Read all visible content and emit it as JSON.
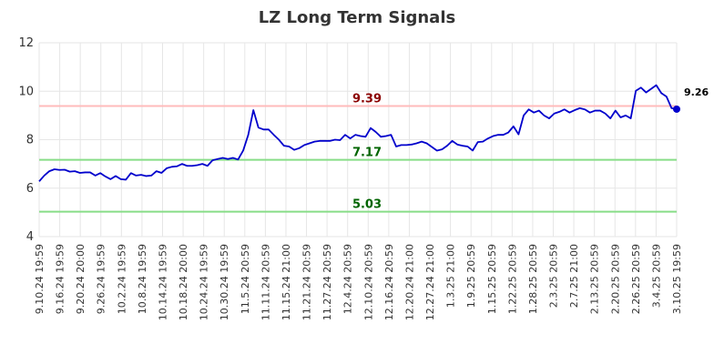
{
  "chart_data": {
    "type": "line",
    "title": "LZ Long Term Signals",
    "xlabel": "",
    "ylabel": "",
    "ylim": [
      4,
      12
    ],
    "yticks": [
      4,
      6,
      8,
      10,
      12
    ],
    "grid": true,
    "line_color": "#0000cc",
    "xtick_labels": [
      "9.10.24 19:59",
      "9.16.24 19:59",
      "9.20.24 20:00",
      "9.26.24 19:59",
      "10.2.24 19:59",
      "10.8.24 19:59",
      "10.14.24 19:59",
      "10.18.24 20:00",
      "10.24.24 19:59",
      "10.30.24 19:59",
      "11.5.24 20:59",
      "11.11.24 20:59",
      "11.15.24 21:00",
      "11.21.24 20:59",
      "11.27.24 20:59",
      "12.4.24 20:59",
      "12.10.24 20:59",
      "12.16.24 20:59",
      "12.20.24 21:00",
      "12.27.24 21:00",
      "1.3.25 21:00",
      "1.9.25 20:59",
      "1.15.25 20:59",
      "1.22.25 20:59",
      "1.28.25 20:59",
      "2.3.25 20:59",
      "2.7.25 21:00",
      "2.13.25 20:59",
      "2.20.25 20:59",
      "2.26.25 20:59",
      "3.4.25 20:59",
      "3.10.25 19:59"
    ],
    "values": [
      6.28,
      6.52,
      6.7,
      6.78,
      6.75,
      6.76,
      6.68,
      6.7,
      6.63,
      6.65,
      6.65,
      6.52,
      6.62,
      6.48,
      6.37,
      6.5,
      6.37,
      6.35,
      6.62,
      6.52,
      6.55,
      6.5,
      6.52,
      6.7,
      6.63,
      6.82,
      6.88,
      6.9,
      7.0,
      6.92,
      6.92,
      6.95,
      7.0,
      6.92,
      7.15,
      7.2,
      7.25,
      7.2,
      7.25,
      7.18,
      7.55,
      8.2,
      9.22,
      8.5,
      8.42,
      8.42,
      8.2,
      8.0,
      7.75,
      7.72,
      7.58,
      7.65,
      7.78,
      7.85,
      7.92,
      7.95,
      7.95,
      7.95,
      8.0,
      7.98,
      8.2,
      8.05,
      8.2,
      8.15,
      8.12,
      8.48,
      8.32,
      8.12,
      8.15,
      8.2,
      7.72,
      7.78,
      7.78,
      7.8,
      7.85,
      7.92,
      7.85,
      7.7,
      7.55,
      7.6,
      7.75,
      7.95,
      7.8,
      7.75,
      7.72,
      7.55,
      7.9,
      7.92,
      8.05,
      8.15,
      8.2,
      8.2,
      8.3,
      8.55,
      8.22,
      9.0,
      9.25,
      9.12,
      9.2,
      9.0,
      8.88,
      9.08,
      9.15,
      9.25,
      9.12,
      9.22,
      9.3,
      9.25,
      9.12,
      9.2,
      9.2,
      9.08,
      8.88,
      9.2,
      8.92,
      9.0,
      8.88,
      10.02,
      10.15,
      9.95,
      10.1,
      10.25,
      9.92,
      9.78,
      9.3,
      9.26
    ],
    "horizontal_lines": [
      {
        "value": 9.39,
        "label": "9.39",
        "line_color": "#ffbbbb",
        "label_color": "#8b0000"
      },
      {
        "value": 7.17,
        "label": "7.17",
        "line_color": "#88dd88",
        "label_color": "#006400"
      },
      {
        "value": 5.03,
        "label": "5.03",
        "line_color": "#88dd88",
        "label_color": "#006400"
      }
    ],
    "last_value_label": "9.26",
    "last_marker_color": "#0000cc"
  }
}
